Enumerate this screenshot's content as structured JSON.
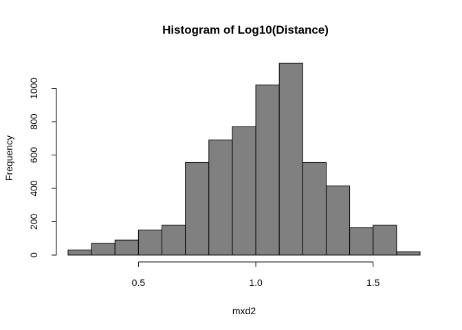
{
  "chart_data": {
    "type": "bar",
    "title": "Histogram of Log10(Distance)",
    "xlabel": "mxd2",
    "ylabel": "Frequency",
    "bin_width": 0.1,
    "bin_starts": [
      0.2,
      0.3,
      0.4,
      0.5,
      0.6,
      0.7,
      0.8,
      0.9,
      1.0,
      1.1,
      1.2,
      1.3,
      1.4,
      1.5,
      1.6
    ],
    "values": [
      30,
      70,
      90,
      150,
      180,
      555,
      690,
      770,
      1020,
      1150,
      555,
      415,
      165,
      180,
      20
    ],
    "x_ticks": [
      0.5,
      1.0,
      1.5
    ],
    "x_tick_labels": [
      "0.5",
      "1.0",
      "1.5"
    ],
    "y_ticks": [
      0,
      200,
      400,
      600,
      800,
      1000
    ],
    "y_tick_labels": [
      "0",
      "200",
      "400",
      "600",
      "800",
      "1000"
    ],
    "xlim": [
      0.2,
      1.7
    ],
    "ylim": [
      0,
      1150
    ],
    "bar_color": "#808080",
    "grid": false
  }
}
